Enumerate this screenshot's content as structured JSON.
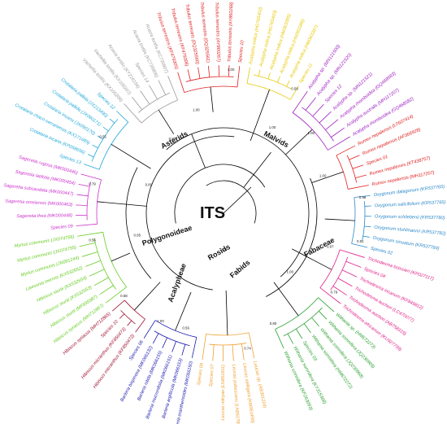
{
  "title": "ITS",
  "clade_labels": {
    "asterids": "Asterids",
    "malvids": "Malvids",
    "fabaceae": "Fabaceae",
    "fabids": "Fabids",
    "rosids": "Rosids",
    "acalypheae": "Acalypheae",
    "polygonoideae": "Polygonoideae"
  },
  "colors": {
    "tree": "#000000",
    "mint": "#f0a030",
    "blue": "#1818b0",
    "green": "#2aa030",
    "darkred": "#a01030",
    "lime": "#66cc22",
    "magenta": "#cc33cc",
    "cyan": "#20a8d8",
    "gray": "#9a9a9a",
    "red": "#e02020",
    "purple": "#a020c0",
    "yellow": "#e8c800",
    "pink": "#e0208a",
    "steel": "#2a88c8"
  },
  "groups": [
    {
      "color": "mint",
      "leaves": [
        "Leucas sp. (AB301224)",
        "Leucas stelligera (KM361456)",
        "Leucas pubescens (LN851789)",
        "Leucas ndiryae (LN851811)",
        "Species 07",
        "Species 08"
      ]
    },
    {
      "color": "blue",
      "leaves": [
        "Barleria eranthemoides (MK066150)",
        "Barleria argillicola (MK066153)",
        "Barleria mucronifolia (MK066151)",
        "Barleria nitida (MK066155)",
        "Barleria bispinosa (MK066132)",
        "Species 06"
      ]
    },
    {
      "color": "darkred",
      "leaves": [
        "Hibiscus micranthus (KF850472)",
        "Hibiscus micranthus (KF850473)",
        "Species 10",
        "Hibiscus syriacus (MH712865)"
      ]
    },
    {
      "color": "lime",
      "leaves": [
        "Hibiscus syriacus (MH712867)",
        "Hibiscus sturtii (MF695987)",
        "Hibiscus sturtii (KX532653)",
        "Hibiscus sturtii (KX532654)",
        "Lawsonia inermis (KX532652)",
        "Myrtus communis (JN091244)",
        "Myrtus communis (JX074755)",
        "Myrtus communis (JX074756)"
      ]
    },
    {
      "color": "magenta",
      "leaves": [
        "Species 09",
        "Sageretia thea (MK000448)",
        "Sageretia omeiensis (MK000463)",
        "Sageretia subcaudata (MK000447)",
        "Sageretia latifolia (MK000454)",
        "Sageretia rugosa (MK000446)"
      ]
    },
    {
      "color": "cyan",
      "leaves": [
        "Species 13",
        "Crotalaria incana (KP058656)",
        "Crotalaria chaco-serranensis (KX171685)",
        "Crotalaria incana (JX090170)",
        "Crotalaria pallida (JX090171)",
        "Crotalaria pallida (JX213490)",
        "Species 12"
      ]
    },
    {
      "color": "gray",
      "leaves": [
        "Vachellia tortilis (KX100206)",
        "Vachellia tortilis (KX100207)",
        "Acacia tortilis (KY216156)",
        "Species 14",
        "Acacia tortilis (KC735806)",
        "Acacia tortilis (KC735807)"
      ]
    },
    {
      "color": "red",
      "leaves": [
        "Tribulus terrestris (KF479305)",
        "Tribulus terrestris (KF479306)",
        "Tribulus terrestris (DQ325560)",
        "Tribulus terrestris (DQ325561)",
        "Tribulus terrestris (AY860267)",
        "Tribulus terrestris (AY860268)",
        "Species 10"
      ]
    },
    {
      "color": "yellow",
      "leaves": [
        "Acalypha indica (HG765402)",
        "Acalypha indica (HG765403)",
        "Acalypha indica (HM363385)",
        "Acalypha indica (HM363386)",
        "Acalypha indica (HM363387)",
        "Species 11"
      ]
    },
    {
      "color": "purple",
      "leaves": [
        "Acalypha sp. (MN121500)",
        "Acalypha sp. (MN121520)",
        "Species 12",
        "Acalypha sp. (MN121521)",
        "Acalypha rhomboidea (GQ468583)",
        "Acalypha australis (MH117207)",
        "Acalypha rhomboidea (GQ468582)"
      ]
    },
    {
      "color": "red",
      "leaves": [
        "Rumex nepalensis (LT607414)",
        "Rumex nepalensis (AF366928)",
        "Species 01",
        "Rumex nepalensis (KT438757)",
        "Rumex nepalensis (MH117207)"
      ]
    },
    {
      "color": "steel",
      "leaves": [
        "Oxygonum dalagonum (KR537765)",
        "Oxygonum salicifolium (KR537765)",
        "Oxygonum schliebenii (KR537780)",
        "Oxygonum stuhlmannii (KR537782)",
        "Oxygonum sinuatum (KR537784)",
        "Species 02"
      ]
    },
    {
      "color": "pink",
      "leaves": [
        "Trichodesma boissieri (KP027117)",
        "Species 04",
        "Trichodesma incanum (KF849812)",
        "Trichodesma aucheri (LC470077)",
        "Trichodesma aucheri (AB758319)",
        "Trichodesma africanum (KU927799)"
      ]
    },
    {
      "color": "green",
      "leaves": [
        "Withania sp. (HM672273)",
        "Withania somnifera (JQ230969)",
        "Withania somnifera (JQ230968)",
        "Withania somnifera (HM672272)",
        "Species 03",
        "Withania somnifera (KY315368)",
        "Withania somnifera (KF263093)"
      ]
    }
  ],
  "supports": [
    {
      "value": "1.00",
      "color": "tree",
      "r": 46,
      "a": 90
    },
    {
      "value": "0.95",
      "color": "tree",
      "r": 110,
      "a": 165
    },
    {
      "value": "0.89",
      "color": "tree",
      "r": 98,
      "a": 200
    },
    {
      "value": "1.00",
      "color": "tree",
      "r": 110,
      "a": 42
    },
    {
      "value": "0.97",
      "color": "tree",
      "r": 138,
      "a": 18
    },
    {
      "value": "1.00",
      "color": "tree",
      "r": 120,
      "a": 300
    },
    {
      "value": "0.87",
      "color": "tree",
      "r": 110,
      "a": 235
    },
    {
      "value": "1.00",
      "color": "tree",
      "r": 130,
      "a": 255
    },
    {
      "value": "1.00",
      "color": "tree",
      "r": 145,
      "a": 318
    },
    {
      "value": "1.00",
      "color": "tree",
      "r": 130,
      "a": 340
    },
    {
      "value": "0.80",
      "color": "tree",
      "r": 150,
      "a": 66
    },
    {
      "value": "1.00",
      "color": "tree",
      "r": 155,
      "a": 120
    },
    {
      "value": "0.56",
      "color": "tree",
      "r": 150,
      "a": 108
    },
    {
      "value": "0.74",
      "color": "tree",
      "r": 170,
      "a": 80
    },
    {
      "value": "0.79",
      "color": "tree",
      "r": 168,
      "a": 36
    },
    {
      "value": "0.51",
      "color": "tree",
      "r": 172,
      "a": 12
    },
    {
      "value": "0.98",
      "color": "tree",
      "r": 172,
      "a": 354
    },
    {
      "value": "0.58",
      "color": "tree",
      "r": 175,
      "a": 300
    },
    {
      "value": "1.00",
      "color": "tree",
      "r": 175,
      "a": 273
    },
    {
      "value": "0.55",
      "color": "tree",
      "r": 175,
      "a": 212
    },
    {
      "value": "0.79",
      "color": "tree",
      "r": 165,
      "a": 192
    },
    {
      "value": "0.56",
      "color": "tree",
      "r": 165,
      "a": 168
    },
    {
      "value": "0.58",
      "color": "tree",
      "r": 160,
      "a": 140
    }
  ]
}
